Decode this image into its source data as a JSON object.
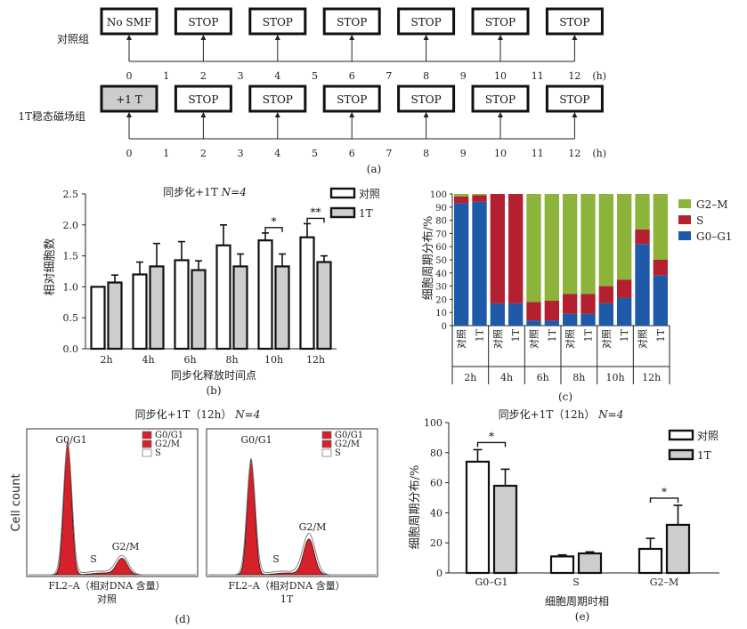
{
  "colors": {
    "red": "#d6202a",
    "darkred": "#b32030",
    "blue": "#1f5aa8",
    "green": "#8cb43a",
    "gray": "#cdcdcd"
  },
  "chart_data": [
    {
      "type": "diagram",
      "panel_label": "(a)",
      "rows": [
        {
          "name": "对照组",
          "first_box": "No SMF",
          "stop_label": "STOP"
        },
        {
          "name": "1T稳态磁场组",
          "first_box": "+1 T",
          "stop_label": "STOP"
        }
      ],
      "axis_ticks": [
        "0",
        "1",
        "2",
        "3",
        "4",
        "5",
        "6",
        "7",
        "8",
        "9",
        "10",
        "11",
        "12"
      ],
      "unit": "(h)",
      "stop_times": [
        2,
        4,
        6,
        8,
        10,
        12
      ]
    },
    {
      "type": "bar",
      "panel_label": "(b)",
      "title": "同步化+1T N=4",
      "title_prefix": "同步化+1T",
      "title_n": "N=4",
      "xlabel": "同步化释放时间点",
      "ylabel": "相对细胞数",
      "categories": [
        "2h",
        "4h",
        "6h",
        "8h",
        "10h",
        "12h"
      ],
      "ylim": [
        0,
        2.5
      ],
      "yticks": [
        "0.0",
        "0.5",
        "1.0",
        "1.5",
        "2.0",
        "2.5"
      ],
      "series": [
        {
          "name": "对照",
          "values": [
            1.0,
            1.2,
            1.43,
            1.67,
            1.75,
            1.8
          ],
          "errors": [
            0.0,
            0.2,
            0.3,
            0.33,
            0.12,
            0.22
          ]
        },
        {
          "name": "1T",
          "values": [
            1.07,
            1.33,
            1.27,
            1.33,
            1.33,
            1.4
          ],
          "errors": [
            0.12,
            0.37,
            0.15,
            0.2,
            0.2,
            0.1
          ]
        }
      ],
      "significance": [
        {
          "category": "10h",
          "label": "*"
        },
        {
          "category": "12h",
          "label": "**"
        }
      ]
    },
    {
      "type": "stacked_bar",
      "panel_label": "(c)",
      "ylabel": "细胞周期分布/%",
      "ylim": [
        0,
        100
      ],
      "yticks": [
        "0",
        "10",
        "20",
        "30",
        "40",
        "50",
        "60",
        "70",
        "80",
        "90",
        "100"
      ],
      "categories": [
        "对照",
        "1T",
        "对照",
        "1T",
        "对照",
        "1T",
        "对照",
        "1T",
        "对照",
        "1T",
        "对照",
        "1T"
      ],
      "groups": [
        "2h",
        "4h",
        "6h",
        "8h",
        "10h",
        "12h"
      ],
      "series": [
        {
          "name": "G0–G1",
          "values": [
            93,
            94,
            17,
            17,
            4,
            4,
            9,
            9,
            17,
            21,
            62,
            38
          ]
        },
        {
          "name": "S",
          "values": [
            5,
            5,
            83,
            83,
            14,
            15,
            15,
            15,
            13,
            14,
            11,
            12
          ]
        },
        {
          "name": "G2–M",
          "values": [
            2,
            1,
            0,
            0,
            82,
            81,
            76,
            76,
            70,
            65,
            27,
            50
          ]
        }
      ],
      "legend": [
        "G2–M",
        "S",
        "G0–G1"
      ]
    },
    {
      "type": "histogram",
      "panel_label": "(d)",
      "title": "同步化+1T（12h） N=4",
      "title_prefix": "同步化+1T（12h）",
      "title_n": "N=4",
      "ylabel": "Cell count",
      "legend": [
        "G0/G1",
        "G2/M",
        "S"
      ],
      "panels": [
        {
          "name": "对照",
          "xlabel": "FL2–A（相对DNA 含量）",
          "peak_labels": {
            "g0g1": "G0/G1",
            "s": "S",
            "g2m": "G2/M"
          }
        },
        {
          "name": "1T",
          "xlabel": "FL2–A（相对DNA 含量）",
          "peak_labels": {
            "g0g1": "G0/G1",
            "s": "S",
            "g2m": "G2/M"
          }
        }
      ]
    },
    {
      "type": "bar",
      "panel_label": "(e)",
      "title": "同步化+1T（12h） N=4",
      "title_prefix": "同步化+1T（12h）",
      "title_n": "N=4",
      "xlabel": "细胞周期时相",
      "ylabel": "细胞周期分布/%",
      "categories": [
        "G0–G1",
        "S",
        "G2–M"
      ],
      "ylim": [
        0,
        100
      ],
      "yticks": [
        "0",
        "20",
        "40",
        "60",
        "80",
        "100"
      ],
      "series": [
        {
          "name": "对照",
          "values": [
            74,
            11,
            16
          ],
          "errors": [
            8,
            1,
            7
          ]
        },
        {
          "name": "1T",
          "values": [
            58,
            13,
            32
          ],
          "errors": [
            11,
            1,
            13
          ]
        }
      ],
      "significance": [
        {
          "category": "G0–G1",
          "label": "*"
        },
        {
          "category": "G2–M",
          "label": "*"
        }
      ]
    }
  ]
}
